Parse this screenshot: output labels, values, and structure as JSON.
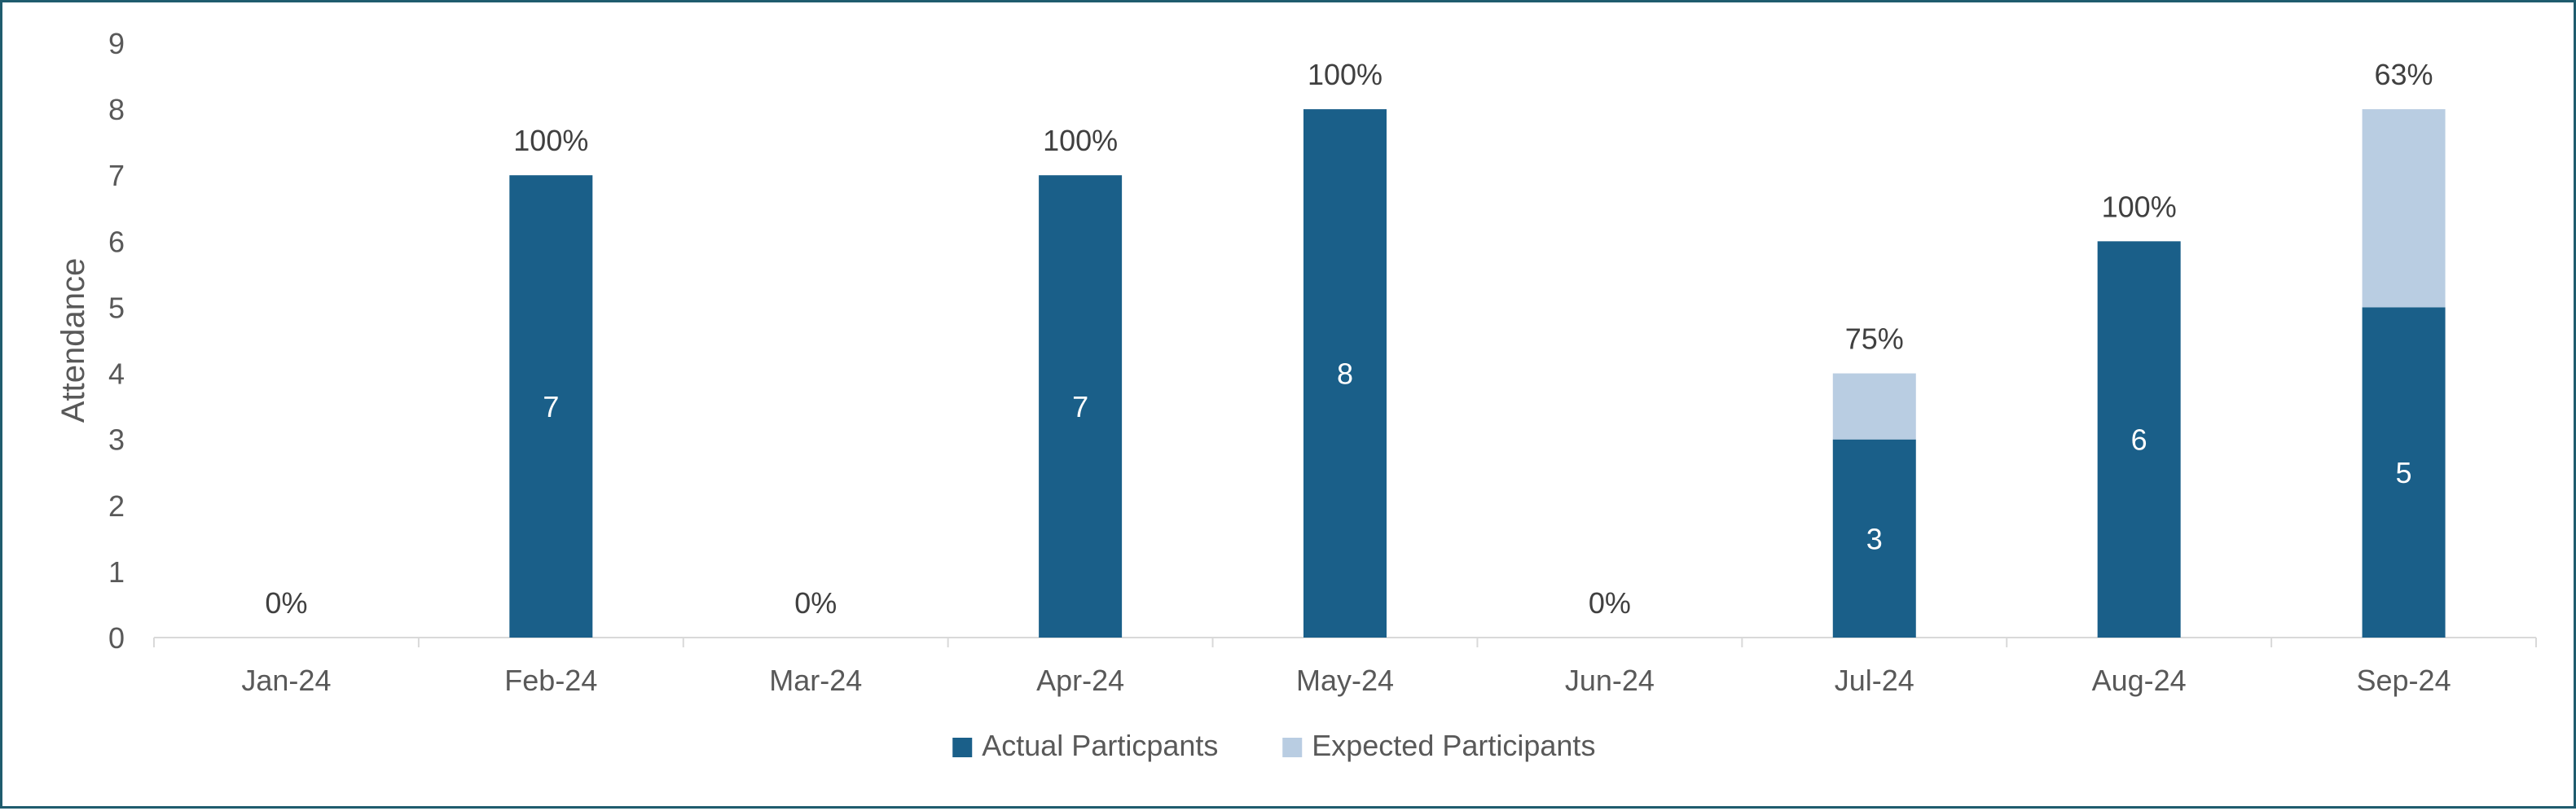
{
  "chart_data": {
    "type": "bar",
    "stacked": true,
    "categories": [
      "Jan-24",
      "Feb-24",
      "Mar-24",
      "Apr-24",
      "May-24",
      "Jun-24",
      "Jul-24",
      "Aug-24",
      "Sep-24"
    ],
    "series": [
      {
        "name": "Actual Particpants",
        "values": [
          0,
          7,
          0,
          7,
          8,
          0,
          3,
          6,
          5
        ],
        "color": "#1a5f89"
      },
      {
        "name": "Expected Participants",
        "values": [
          0,
          0,
          0,
          0,
          0,
          0,
          1,
          0,
          3
        ],
        "color": "#b9cde2"
      }
    ],
    "percent_labels": [
      "0%",
      "100%",
      "0%",
      "100%",
      "100%",
      "0%",
      "75%",
      "100%",
      "63%"
    ],
    "ylabel": "Attendance",
    "ylim": [
      0,
      9
    ],
    "yticks": [
      0,
      1,
      2,
      3,
      4,
      5,
      6,
      7,
      8,
      9
    ],
    "grid": false,
    "legend_position": "bottom"
  }
}
